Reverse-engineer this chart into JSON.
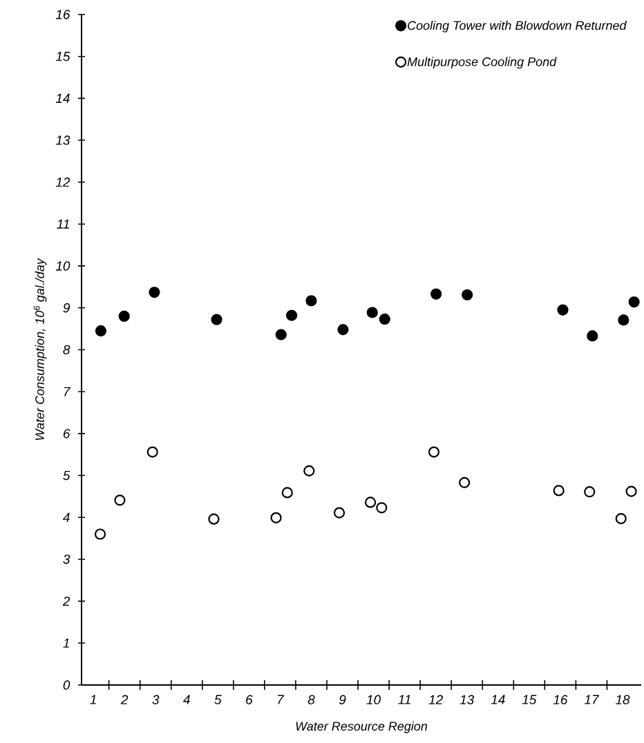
{
  "chart_data": {
    "type": "scatter",
    "xlabel": "Water Resource Region",
    "ylabel": "Water Consumption, 10$^{6}$ gal./day",
    "xlim": [
      0.62,
      18.6
    ],
    "ylim": [
      0,
      16
    ],
    "xticks": [
      {
        "value": 1,
        "label": "1"
      },
      {
        "value": 2,
        "label": "2"
      },
      {
        "value": 3,
        "label": "3"
      },
      {
        "value": 4,
        "label": "4"
      },
      {
        "value": 5,
        "label": "5"
      },
      {
        "value": 6,
        "label": "6"
      },
      {
        "value": 7,
        "label": "7"
      },
      {
        "value": 8,
        "label": "8"
      },
      {
        "value": 9,
        "label": "9"
      },
      {
        "value": 10,
        "label": "10"
      },
      {
        "value": 11,
        "label": "11"
      },
      {
        "value": 12,
        "label": "12"
      },
      {
        "value": 13,
        "label": "13"
      },
      {
        "value": 14,
        "label": "14"
      },
      {
        "value": 15,
        "label": "15"
      },
      {
        "value": 16,
        "label": "16"
      },
      {
        "value": 17,
        "label": "17"
      },
      {
        "value": 18,
        "label": "18"
      },
      {
        "value": 1.5,
        "label": null
      },
      {
        "value": 2.5,
        "label": null
      },
      {
        "value": 3.5,
        "label": null
      },
      {
        "value": 4.5,
        "label": null
      },
      {
        "value": 5.5,
        "label": null
      },
      {
        "value": 6.5,
        "label": null
      },
      {
        "value": 7.5,
        "label": null
      },
      {
        "value": 8.5,
        "label": null
      },
      {
        "value": 9.5,
        "label": null
      },
      {
        "value": 10.5,
        "label": null
      },
      {
        "value": 11.5,
        "label": null
      },
      {
        "value": 12.5,
        "label": null
      },
      {
        "value": 13.5,
        "label": null
      },
      {
        "value": 14.5,
        "label": null
      },
      {
        "value": 15.5,
        "label": null
      },
      {
        "value": 16.5,
        "label": null
      },
      {
        "value": 17.5,
        "label": null
      }
    ],
    "yticks": [
      0,
      1,
      2,
      3,
      4,
      5,
      6,
      7,
      8,
      9,
      10,
      11,
      12,
      13,
      14,
      15,
      16
    ],
    "grid": false,
    "legend": "top right",
    "series": [
      {
        "name": "Cooling Tower with Blowdown Returned",
        "color": "#000000",
        "marker": "circle",
        "x": [
          1.24,
          1.99,
          2.96,
          4.96,
          7.03,
          7.37,
          8.0,
          9.02,
          9.96,
          10.36,
          12.01,
          13.01,
          16.08,
          17.03,
          18.03,
          18.37
        ],
        "values": [
          8.45,
          8.8,
          9.37,
          8.72,
          8.36,
          8.82,
          9.17,
          8.48,
          8.89,
          8.73,
          9.33,
          9.31,
          8.95,
          8.33,
          8.71,
          9.14
        ]
      },
      {
        "name": "Multipurpose Cooling Pond",
        "color": "#000000",
        "marker": "circle-open",
        "x": [
          1.22,
          1.85,
          2.9,
          4.87,
          6.87,
          7.23,
          7.93,
          8.9,
          9.9,
          10.26,
          11.94,
          12.92,
          15.95,
          16.94,
          17.95,
          18.28
        ],
        "values": [
          3.6,
          4.41,
          5.56,
          3.96,
          3.99,
          4.59,
          5.11,
          4.11,
          4.36,
          4.23,
          5.56,
          4.83,
          4.64,
          4.61,
          3.97,
          4.62
        ]
      }
    ]
  }
}
